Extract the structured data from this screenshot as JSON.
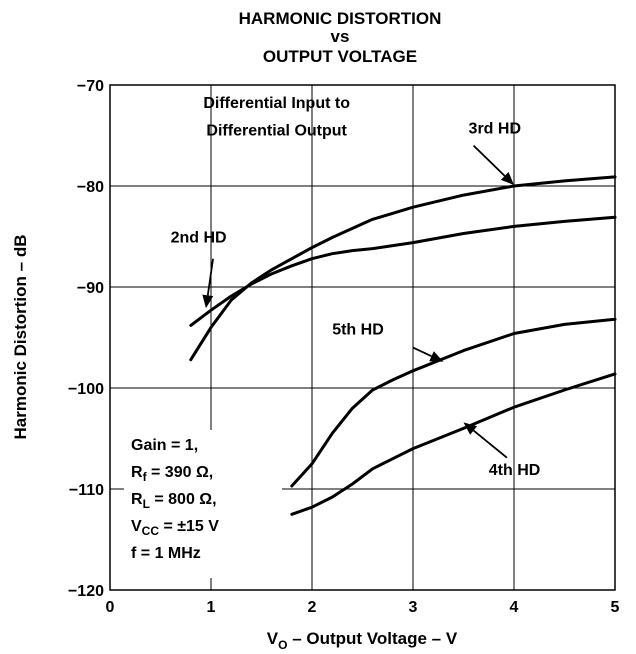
{
  "chart_data": {
    "type": "line",
    "title": [
      "HARMONIC DISTORTION",
      "vs",
      "OUTPUT VOLTAGE"
    ],
    "xlabel": "V_O – Output Voltage – V",
    "xlabel_parts": {
      "main": "V",
      "sub": "O",
      "rest": " – Output Voltage – V"
    },
    "ylabel": "Harmonic Distortion – dB",
    "xlim": [
      0,
      5
    ],
    "ylim": [
      -120,
      -70
    ],
    "xticks": [
      0,
      1,
      2,
      3,
      4,
      5
    ],
    "yticks": [
      -70,
      -80,
      -90,
      -100,
      -110,
      -120
    ],
    "xtick_labels": [
      "0",
      "1",
      "2",
      "3",
      "4",
      "5"
    ],
    "ytick_labels": [
      "−70",
      "−80",
      "−90",
      "−100",
      "−110",
      "−120"
    ],
    "grid": true,
    "series": [
      {
        "name": "2nd HD",
        "x": [
          0.8,
          1.0,
          1.2,
          1.4,
          1.6,
          1.8,
          2.0,
          2.2,
          2.4,
          2.6,
          2.8,
          3.0,
          3.5,
          4.0,
          4.5,
          5.0
        ],
        "y": [
          -93.8,
          -92.3,
          -90.9,
          -89.7,
          -88.7,
          -87.9,
          -87.2,
          -86.7,
          -86.4,
          -86.2,
          -85.9,
          -85.6,
          -84.7,
          -84.0,
          -83.5,
          -83.1
        ]
      },
      {
        "name": "3rd HD",
        "x": [
          0.8,
          1.0,
          1.2,
          1.4,
          1.6,
          1.8,
          2.0,
          2.2,
          2.4,
          2.6,
          2.8,
          3.0,
          3.5,
          4.0,
          4.5,
          5.0
        ],
        "y": [
          -97.2,
          -94.0,
          -91.3,
          -89.6,
          -88.3,
          -87.2,
          -86.1,
          -85.1,
          -84.2,
          -83.3,
          -82.7,
          -82.1,
          -80.9,
          -80.0,
          -79.5,
          -79.1
        ]
      },
      {
        "name": "4th HD",
        "x": [
          1.8,
          2.0,
          2.2,
          2.4,
          2.6,
          2.8,
          3.0,
          3.5,
          4.0,
          4.5,
          5.0
        ],
        "y": [
          -112.5,
          -111.8,
          -110.8,
          -109.5,
          -108.0,
          -107.0,
          -106.0,
          -104.0,
          -101.9,
          -100.2,
          -98.6
        ]
      },
      {
        "name": "5th HD",
        "x": [
          1.8,
          2.0,
          2.2,
          2.4,
          2.6,
          2.8,
          3.0,
          3.5,
          4.0,
          4.5,
          5.0
        ],
        "y": [
          -109.7,
          -107.5,
          -104.5,
          -102.0,
          -100.2,
          -99.2,
          -98.3,
          -96.3,
          -94.6,
          -93.7,
          -93.2
        ]
      }
    ],
    "annotations": [
      {
        "text": "Differential  Input to",
        "x": 1.65,
        "y": -72.3
      },
      {
        "text": "Differential Output",
        "x": 1.65,
        "y": -75.0
      },
      {
        "text": "3rd HD",
        "x": 3.55,
        "y": -74.8,
        "arrow_to": [
          4.0,
          -79.9
        ]
      },
      {
        "text": "2nd HD",
        "x": 0.6,
        "y": -85.6,
        "arrow_to": [
          0.95,
          -92.1
        ]
      },
      {
        "text": "5th HD",
        "x": 2.2,
        "y": -94.7,
        "arrow_to": [
          3.3,
          -97.4
        ]
      },
      {
        "text": "4th HD",
        "x": 3.75,
        "y": -108.6,
        "arrow_to": [
          3.5,
          -103.4
        ]
      }
    ],
    "conditions": {
      "gain": "Gain = 1,",
      "rf": {
        "main": "R",
        "sub": "f",
        "rest": " = 390 Ω,"
      },
      "rl": {
        "main": "R",
        "sub": "L",
        "rest": " = 800 Ω,"
      },
      "vcc": {
        "main": "V",
        "sub": "CC",
        "rest": " = ±15 V"
      },
      "freq": "f = 1 MHz"
    },
    "colors": {
      "line": "#000000",
      "grid": "#000000",
      "background": "#ffffff"
    }
  }
}
